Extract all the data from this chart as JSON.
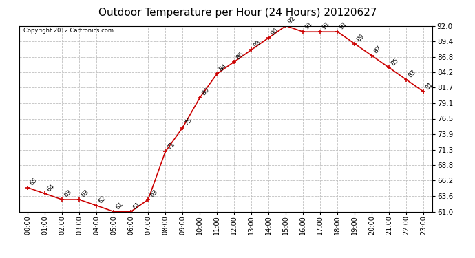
{
  "title": "Outdoor Temperature per Hour (24 Hours) 20120627",
  "copyright_text": "Copyright 2012 Cartronics.com",
  "hours": [
    "00:00",
    "01:00",
    "02:00",
    "03:00",
    "04:00",
    "05:00",
    "06:00",
    "07:00",
    "08:00",
    "09:00",
    "10:00",
    "11:00",
    "12:00",
    "13:00",
    "14:00",
    "15:00",
    "16:00",
    "17:00",
    "18:00",
    "19:00",
    "20:00",
    "21:00",
    "22:00",
    "23:00"
  ],
  "temps": [
    65,
    64,
    63,
    63,
    62,
    61,
    61,
    63,
    71,
    75,
    80,
    84,
    86,
    88,
    90,
    92,
    91,
    91,
    91,
    89,
    87,
    85,
    83,
    81
  ],
  "line_color": "#cc0000",
  "marker_color": "#cc0000",
  "bg_color": "#ffffff",
  "grid_color": "#c0c0c0",
  "ylim_min": 61.0,
  "ylim_max": 92.0,
  "yticks": [
    61.0,
    63.6,
    66.2,
    68.8,
    71.3,
    73.9,
    76.5,
    79.1,
    81.7,
    84.2,
    86.8,
    89.4,
    92.0
  ],
  "title_fontsize": 11,
  "annotation_fontsize": 6.5,
  "copyright_fontsize": 6.0,
  "xtick_fontsize": 7.0,
  "ytick_fontsize": 7.5
}
